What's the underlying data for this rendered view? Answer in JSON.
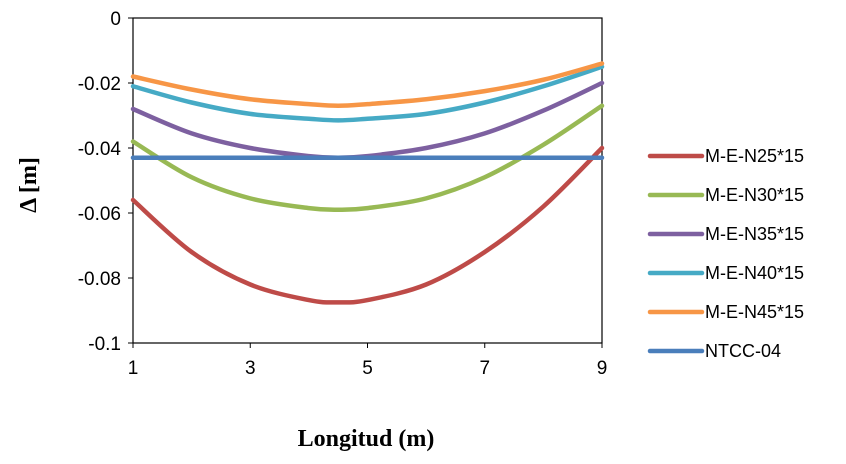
{
  "chart_data": {
    "type": "line",
    "xlabel": "Longitud (m)",
    "ylabel": "Δ [m]",
    "xlim": [
      1,
      9
    ],
    "ylim": [
      -0.1,
      0
    ],
    "xticks": [
      1,
      3,
      5,
      7,
      9
    ],
    "yticks": [
      0,
      -0.02,
      -0.04,
      -0.06,
      -0.08,
      -0.1
    ],
    "xtick_labels": [
      "1",
      "3",
      "5",
      "7",
      "9"
    ],
    "ytick_labels": [
      "0",
      "-0.02",
      "-0.04",
      "-0.06",
      "-0.08",
      "-0.1"
    ],
    "grid": false,
    "legend_position": "right",
    "x": [
      1,
      2,
      3,
      4,
      4.5,
      5,
      6,
      7,
      8,
      9
    ],
    "series": [
      {
        "name": "M-E-N25*15",
        "color": "#BE4B48",
        "values": [
          -0.056,
          -0.072,
          -0.082,
          -0.0868,
          -0.0875,
          -0.0868,
          -0.082,
          -0.072,
          -0.058,
          -0.04
        ]
      },
      {
        "name": "M-E-N30*15",
        "color": "#98B954",
        "values": [
          -0.038,
          -0.049,
          -0.0555,
          -0.0585,
          -0.059,
          -0.0585,
          -0.0555,
          -0.049,
          -0.039,
          -0.027
        ]
      },
      {
        "name": "M-E-N35*15",
        "color": "#7D60A0",
        "values": [
          -0.028,
          -0.0355,
          -0.04,
          -0.0425,
          -0.043,
          -0.0425,
          -0.04,
          -0.0355,
          -0.0285,
          -0.02
        ]
      },
      {
        "name": "M-E-N40*15",
        "color": "#46AAC5",
        "values": [
          -0.021,
          -0.026,
          -0.0295,
          -0.031,
          -0.0315,
          -0.031,
          -0.0295,
          -0.026,
          -0.021,
          -0.015
        ]
      },
      {
        "name": "M-E-N45*15",
        "color": "#F79646",
        "values": [
          -0.018,
          -0.022,
          -0.025,
          -0.0265,
          -0.027,
          -0.0265,
          -0.025,
          -0.0225,
          -0.019,
          -0.014
        ]
      },
      {
        "name": "NTCC-04",
        "color": "#4A7EBB",
        "values": [
          -0.043,
          -0.043,
          -0.043,
          -0.043,
          -0.043,
          -0.043,
          -0.043,
          -0.043,
          -0.043,
          -0.043
        ]
      }
    ]
  }
}
